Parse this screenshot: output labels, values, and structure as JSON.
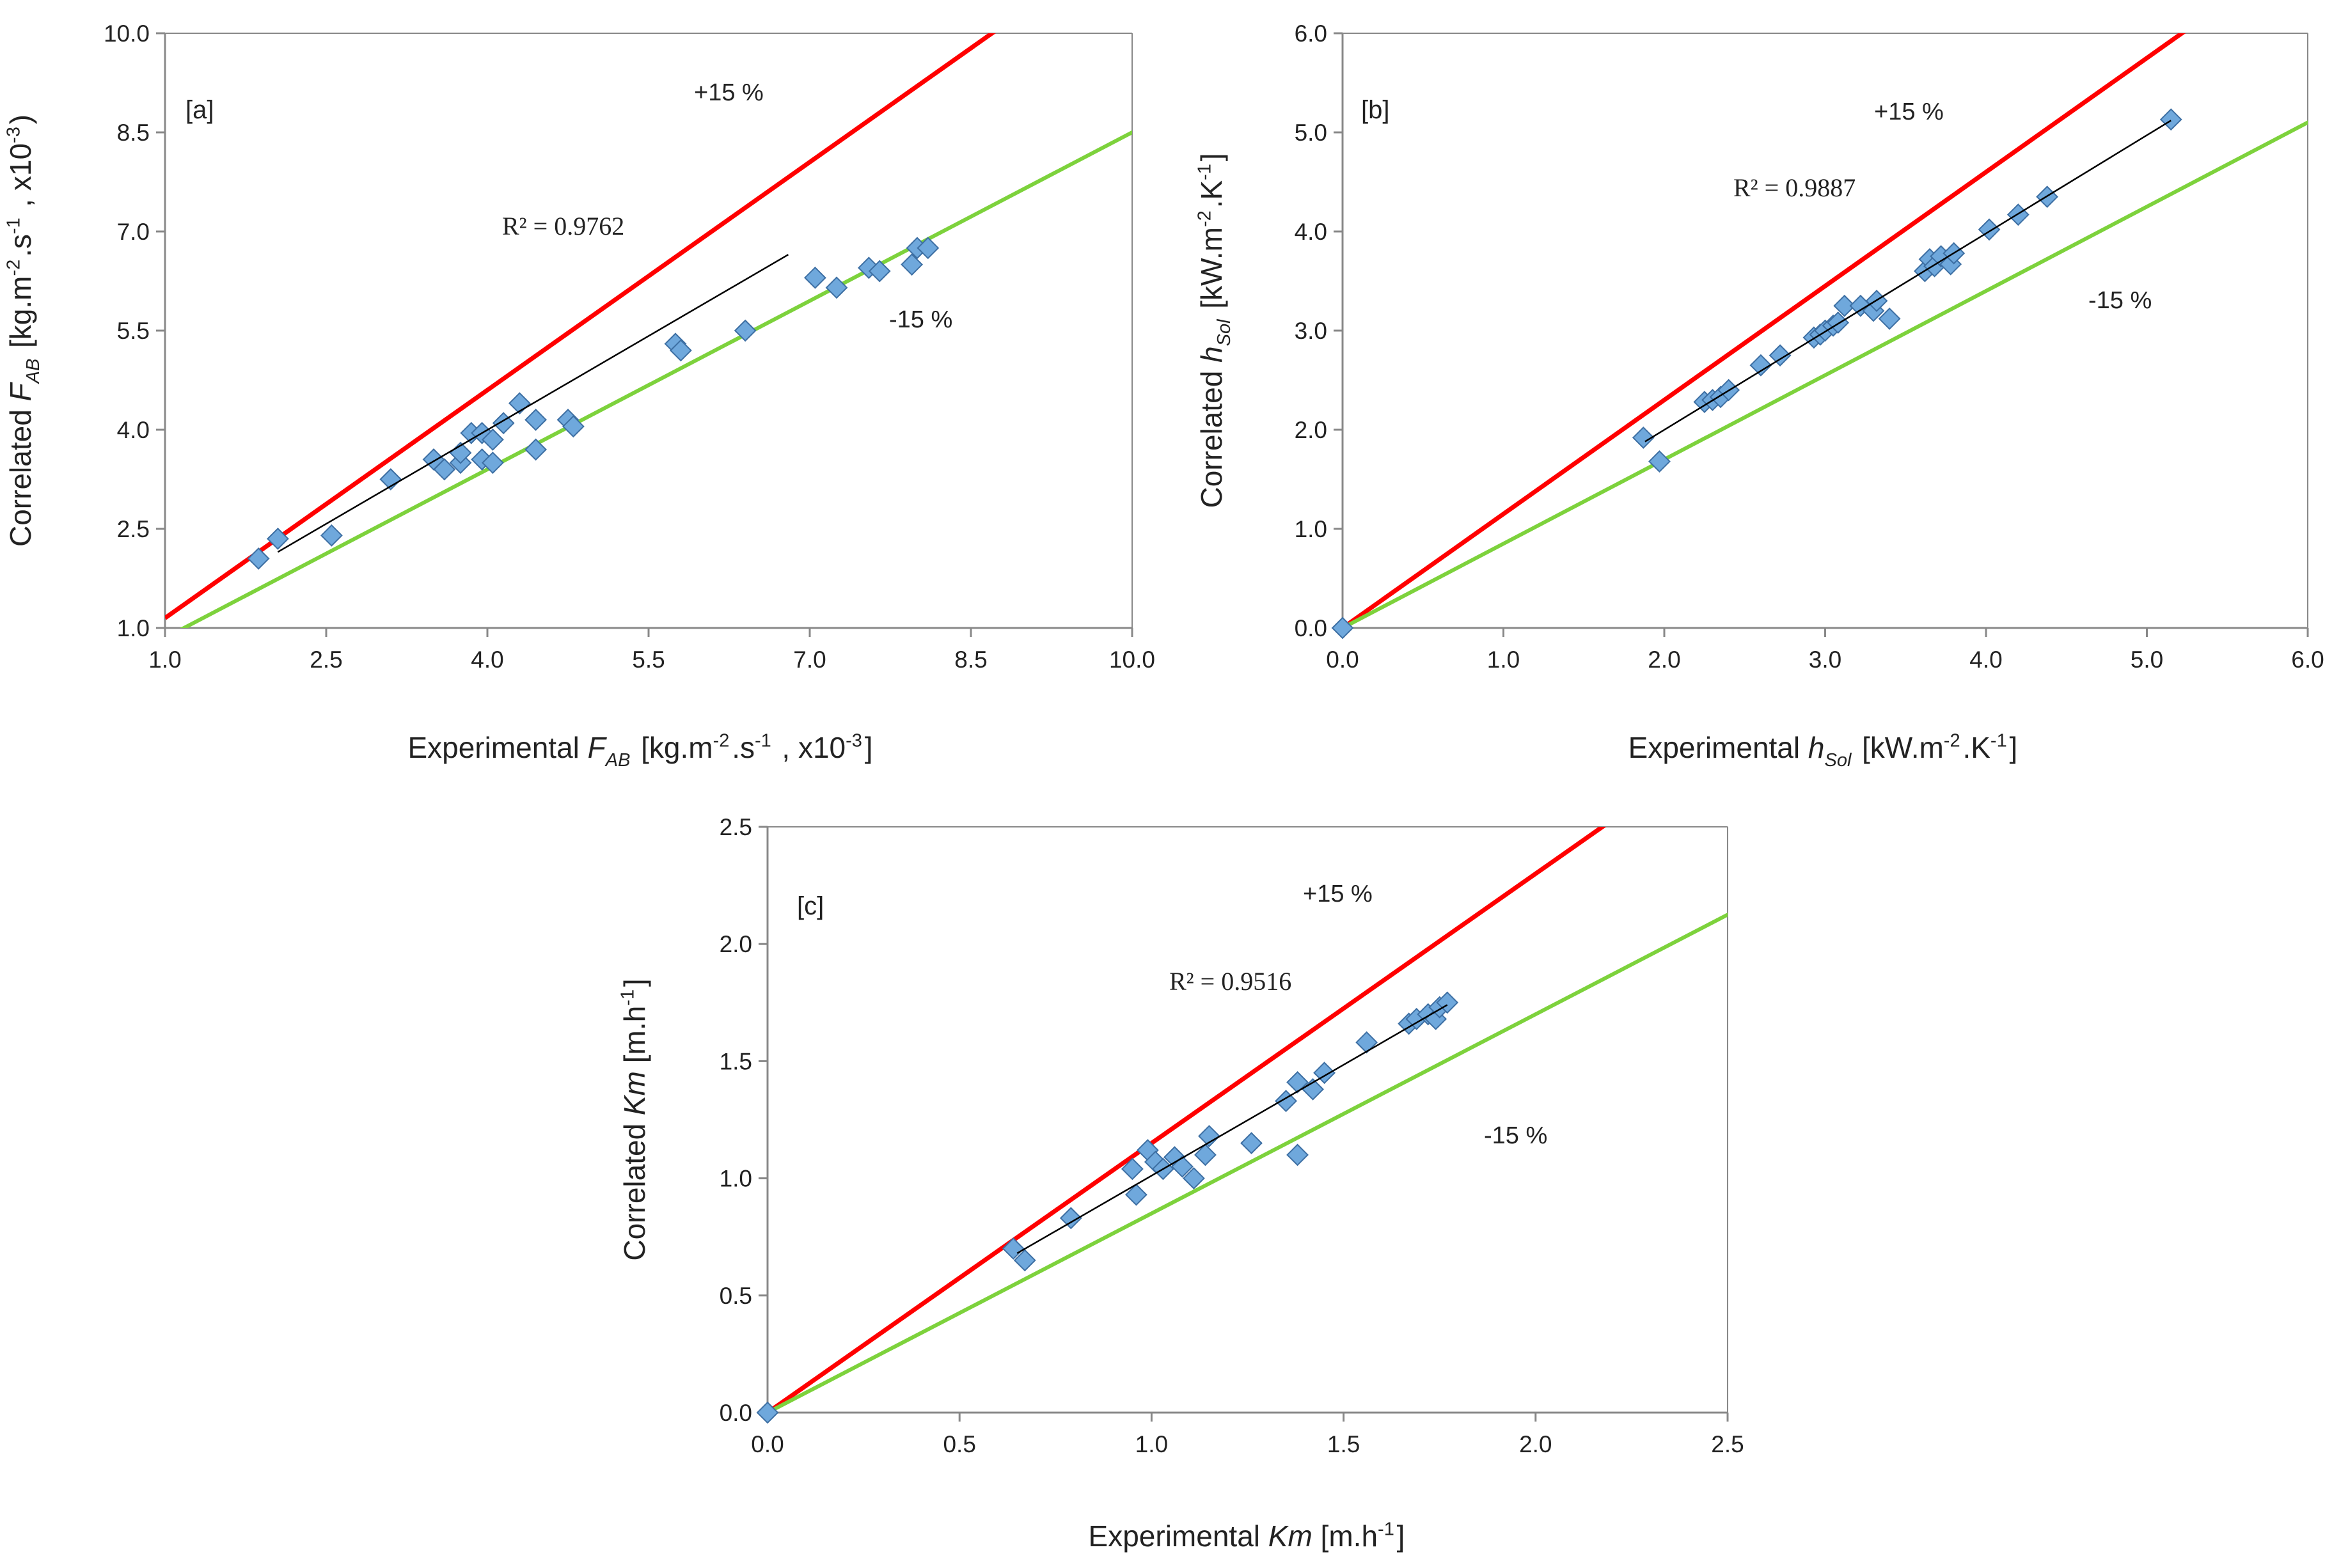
{
  "chart_data": [
    {
      "type": "scatter",
      "panel_label": "[a]",
      "xlim": [
        1.0,
        10.0
      ],
      "ylim": [
        1.0,
        10.0
      ],
      "xticks": [
        1.0,
        2.5,
        4.0,
        5.5,
        7.0,
        8.5,
        10.0
      ],
      "yticks": [
        1.0,
        2.5,
        4.0,
        5.5,
        7.0,
        8.5,
        10.0
      ],
      "tick_format": 1,
      "xlabel": {
        "pre": "Experimental ",
        "sym": "F",
        "sub": "AB",
        "post": " [kg.m",
        "sup1": "-2",
        "mid": ".s",
        "sup2": "-1",
        "post2": " , x10",
        "sup3": "-3",
        "end": "]"
      },
      "ylabel": {
        "pre": "Correlated ",
        "sym": "F",
        "sub": "AB",
        "post": " [kg.m",
        "sup1": "-2",
        "mid": ".s",
        "sup2": "-1",
        "post2": " , x10",
        "sup3": "-3",
        "end": ")"
      },
      "r2": "R² = 0.9762",
      "upper_label": "+15 %",
      "lower_label": "-15 %",
      "upper_factor": 1.15,
      "lower_factor": 0.85,
      "fit_line": {
        "from": [
          2.05,
          2.15
        ],
        "to": [
          6.8,
          6.65
        ]
      },
      "points": [
        [
          1.87,
          2.05
        ],
        [
          2.05,
          2.35
        ],
        [
          2.55,
          2.4
        ],
        [
          3.1,
          3.25
        ],
        [
          3.5,
          3.55
        ],
        [
          3.6,
          3.4
        ],
        [
          3.75,
          3.5
        ],
        [
          3.75,
          3.65
        ],
        [
          3.85,
          3.95
        ],
        [
          3.95,
          3.55
        ],
        [
          3.95,
          3.95
        ],
        [
          4.05,
          3.85
        ],
        [
          4.05,
          3.5
        ],
        [
          4.15,
          4.1
        ],
        [
          4.3,
          4.4
        ],
        [
          4.45,
          4.15
        ],
        [
          4.45,
          3.7
        ],
        [
          4.75,
          4.15
        ],
        [
          4.8,
          4.05
        ],
        [
          5.75,
          5.3
        ],
        [
          5.8,
          5.2
        ],
        [
          6.4,
          5.5
        ],
        [
          7.05,
          6.3
        ],
        [
          7.25,
          6.15
        ],
        [
          7.55,
          6.45
        ],
        [
          7.65,
          6.4
        ],
        [
          7.95,
          6.5
        ],
        [
          8.0,
          6.75
        ],
        [
          8.1,
          6.75
        ]
      ]
    },
    {
      "type": "scatter",
      "panel_label": "[b]",
      "xlim": [
        0.0,
        6.0
      ],
      "ylim": [
        0.0,
        6.0
      ],
      "xticks": [
        0.0,
        1.0,
        2.0,
        3.0,
        4.0,
        5.0,
        6.0
      ],
      "yticks": [
        0.0,
        1.0,
        2.0,
        3.0,
        4.0,
        5.0,
        6.0
      ],
      "tick_format": 1,
      "xlabel": {
        "pre": "Experimental ",
        "sym": "h",
        "sub": "Sol",
        "post": " [kW.m",
        "sup1": "-2",
        "mid": ".K",
        "sup2": "-1",
        "end": "]"
      },
      "ylabel": {
        "pre": "Correlated ",
        "sym": "h",
        "sub": "Sol",
        "post": " [kW.m",
        "sup1": "-2",
        "mid": ".K",
        "sup2": "-1",
        "end": "]"
      },
      "r2": "R² = 0.9887",
      "upper_label": "+15 %",
      "lower_label": "-15 %",
      "upper_factor": 1.15,
      "lower_factor": 0.85,
      "fit_line": {
        "from": [
          1.88,
          1.88
        ],
        "to": [
          5.15,
          5.12
        ]
      },
      "points": [
        [
          0.0,
          0.0
        ],
        [
          1.87,
          1.92
        ],
        [
          1.97,
          1.68
        ],
        [
          2.25,
          2.28
        ],
        [
          2.3,
          2.3
        ],
        [
          2.35,
          2.33
        ],
        [
          2.4,
          2.4
        ],
        [
          2.6,
          2.65
        ],
        [
          2.72,
          2.75
        ],
        [
          2.93,
          2.93
        ],
        [
          2.97,
          2.96
        ],
        [
          3.0,
          3.0
        ],
        [
          3.05,
          3.05
        ],
        [
          3.08,
          3.08
        ],
        [
          3.12,
          3.25
        ],
        [
          3.22,
          3.25
        ],
        [
          3.3,
          3.2
        ],
        [
          3.32,
          3.3
        ],
        [
          3.4,
          3.12
        ],
        [
          3.62,
          3.6
        ],
        [
          3.65,
          3.72
        ],
        [
          3.68,
          3.65
        ],
        [
          3.72,
          3.75
        ],
        [
          3.78,
          3.67
        ],
        [
          3.8,
          3.78
        ],
        [
          4.02,
          4.02
        ],
        [
          4.2,
          4.17
        ],
        [
          4.38,
          4.35
        ],
        [
          5.15,
          5.13
        ]
      ]
    },
    {
      "type": "scatter",
      "panel_label": "[c]",
      "xlim": [
        0.0,
        2.5
      ],
      "ylim": [
        0.0,
        2.5
      ],
      "xticks": [
        0.0,
        0.5,
        1.0,
        1.5,
        2.0,
        2.5
      ],
      "yticks": [
        0.0,
        0.5,
        1.0,
        1.5,
        2.0,
        2.5
      ],
      "tick_format": 1,
      "xlabel": {
        "pre": "Experimental ",
        "sym": "Km",
        "sub": "",
        "post": " [m.h",
        "sup1": "-1",
        "end": "]"
      },
      "ylabel": {
        "pre": "Correlated ",
        "sym": "Km",
        "sub": "",
        "post": " [m.h",
        "sup1": "-1",
        "end": "]"
      },
      "r2": "R² = 0.9516",
      "upper_label": "+15 %",
      "lower_label": "-15 %",
      "upper_factor": 1.15,
      "lower_factor": 0.85,
      "fit_line": {
        "from": [
          0.65,
          0.68
        ],
        "to": [
          1.77,
          1.74
        ]
      },
      "points": [
        [
          0.0,
          0.0
        ],
        [
          0.64,
          0.7
        ],
        [
          0.67,
          0.65
        ],
        [
          0.79,
          0.83
        ],
        [
          0.95,
          1.04
        ],
        [
          0.96,
          0.93
        ],
        [
          0.99,
          1.12
        ],
        [
          1.01,
          1.07
        ],
        [
          1.03,
          1.04
        ],
        [
          1.06,
          1.09
        ],
        [
          1.08,
          1.05
        ],
        [
          1.11,
          1.0
        ],
        [
          1.14,
          1.1
        ],
        [
          1.15,
          1.18
        ],
        [
          1.26,
          1.15
        ],
        [
          1.35,
          1.33
        ],
        [
          1.38,
          1.41
        ],
        [
          1.38,
          1.1
        ],
        [
          1.42,
          1.38
        ],
        [
          1.45,
          1.45
        ],
        [
          1.56,
          1.58
        ],
        [
          1.67,
          1.66
        ],
        [
          1.69,
          1.68
        ],
        [
          1.72,
          1.7
        ],
        [
          1.74,
          1.68
        ],
        [
          1.75,
          1.73
        ],
        [
          1.77,
          1.75
        ]
      ]
    }
  ],
  "colors": {
    "upper_line": "#ff0000",
    "lower_line": "#7dd23c",
    "fit_line": "#000000",
    "marker_fill": "#6fa8dc",
    "marker_stroke": "#3d6fa3",
    "axis": "#888888",
    "text": "#222222"
  }
}
